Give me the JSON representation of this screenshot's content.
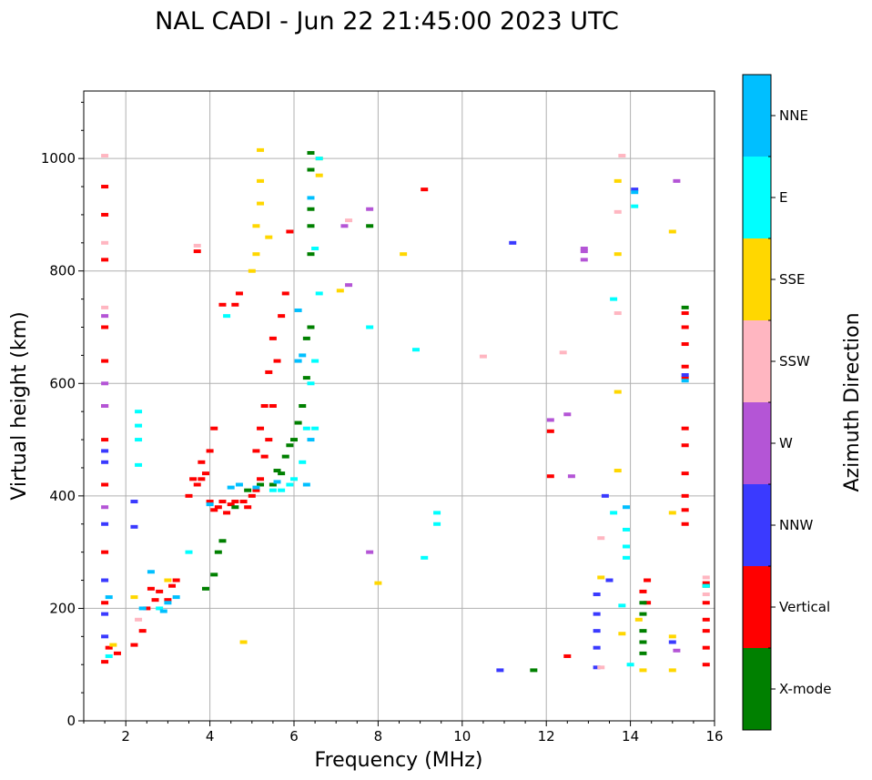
{
  "chart_data": {
    "type": "scatter",
    "title": "NAL CADI - Jun 22 21:45:00 2023 UTC",
    "xlabel": "Frequency (MHz)",
    "ylabel": "Virtual height (km)",
    "xlim": [
      1,
      16
    ],
    "ylim": [
      0,
      1120
    ],
    "xticks": [
      2,
      4,
      6,
      8,
      10,
      12,
      14,
      16
    ],
    "yticks": [
      0,
      200,
      400,
      600,
      800,
      1000
    ],
    "grid": true,
    "colorbar": {
      "label": "Azimuth Direction",
      "categories": [
        {
          "name": "X-mode",
          "color": "#008000"
        },
        {
          "name": "Vertical",
          "color": "#ff0000"
        },
        {
          "name": "NNW",
          "color": "#3a3aff"
        },
        {
          "name": "W",
          "color": "#b455d6"
        },
        {
          "name": "SSW",
          "color": "#ffb6c1"
        },
        {
          "name": "SSE",
          "color": "#ffd700"
        },
        {
          "name": "E",
          "color": "#00ffff"
        },
        {
          "name": "NNE",
          "color": "#00bfff"
        }
      ]
    },
    "series": [
      {
        "name": "Vertical",
        "points": [
          [
            1.5,
            105
          ],
          [
            1.5,
            210
          ],
          [
            1.5,
            300
          ],
          [
            1.5,
            420
          ],
          [
            1.5,
            500
          ],
          [
            1.5,
            560
          ],
          [
            1.5,
            640
          ],
          [
            1.5,
            700
          ],
          [
            1.5,
            820
          ],
          [
            1.5,
            900
          ],
          [
            1.5,
            950
          ],
          [
            1.6,
            130
          ],
          [
            1.8,
            120
          ],
          [
            2.2,
            135
          ],
          [
            2.4,
            160
          ],
          [
            2.5,
            200
          ],
          [
            2.6,
            235
          ],
          [
            2.7,
            215
          ],
          [
            2.8,
            230
          ],
          [
            3.0,
            215
          ],
          [
            3.1,
            240
          ],
          [
            3.2,
            250
          ],
          [
            3.5,
            400
          ],
          [
            3.6,
            430
          ],
          [
            3.7,
            420
          ],
          [
            3.7,
            835
          ],
          [
            3.8,
            430
          ],
          [
            3.8,
            460
          ],
          [
            3.9,
            440
          ],
          [
            4.0,
            390
          ],
          [
            4.0,
            480
          ],
          [
            4.1,
            375
          ],
          [
            4.1,
            520
          ],
          [
            4.2,
            380
          ],
          [
            4.3,
            390
          ],
          [
            4.3,
            740
          ],
          [
            4.4,
            370
          ],
          [
            4.5,
            385
          ],
          [
            4.6,
            390
          ],
          [
            4.6,
            740
          ],
          [
            4.7,
            760
          ],
          [
            4.8,
            390
          ],
          [
            4.9,
            380
          ],
          [
            5.0,
            400
          ],
          [
            5.1,
            410
          ],
          [
            5.1,
            480
          ],
          [
            5.2,
            430
          ],
          [
            5.2,
            520
          ],
          [
            5.3,
            470
          ],
          [
            5.3,
            560
          ],
          [
            5.4,
            500
          ],
          [
            5.4,
            620
          ],
          [
            5.5,
            560
          ],
          [
            5.5,
            680
          ],
          [
            5.6,
            640
          ],
          [
            5.7,
            720
          ],
          [
            5.8,
            760
          ],
          [
            5.9,
            870
          ],
          [
            9.1,
            945
          ],
          [
            12.1,
            515
          ],
          [
            12.1,
            435
          ],
          [
            12.5,
            115
          ],
          [
            14.3,
            230
          ],
          [
            14.4,
            210
          ],
          [
            14.4,
            250
          ],
          [
            15.3,
            350
          ],
          [
            15.3,
            375
          ],
          [
            15.3,
            400
          ],
          [
            15.3,
            440
          ],
          [
            15.3,
            490
          ],
          [
            15.3,
            520
          ],
          [
            15.3,
            610
          ],
          [
            15.3,
            630
          ],
          [
            15.3,
            670
          ],
          [
            15.3,
            700
          ],
          [
            15.3,
            725
          ],
          [
            15.8,
            100
          ],
          [
            15.8,
            130
          ],
          [
            15.8,
            160
          ],
          [
            15.8,
            180
          ],
          [
            15.8,
            210
          ],
          [
            15.8,
            245
          ]
        ]
      },
      {
        "name": "X-mode",
        "points": [
          [
            3.9,
            235
          ],
          [
            4.1,
            260
          ],
          [
            4.2,
            300
          ],
          [
            4.3,
            320
          ],
          [
            4.6,
            380
          ],
          [
            4.9,
            410
          ],
          [
            5.2,
            420
          ],
          [
            5.5,
            420
          ],
          [
            5.6,
            445
          ],
          [
            5.7,
            440
          ],
          [
            5.8,
            470
          ],
          [
            5.9,
            490
          ],
          [
            6.0,
            500
          ],
          [
            6.1,
            530
          ],
          [
            6.2,
            560
          ],
          [
            6.3,
            610
          ],
          [
            6.3,
            680
          ],
          [
            6.4,
            700
          ],
          [
            6.4,
            830
          ],
          [
            6.4,
            880
          ],
          [
            6.4,
            910
          ],
          [
            6.4,
            980
          ],
          [
            6.4,
            1010
          ],
          [
            7.8,
            880
          ],
          [
            11.7,
            90
          ],
          [
            14.3,
            120
          ],
          [
            14.3,
            140
          ],
          [
            14.3,
            160
          ],
          [
            14.3,
            190
          ],
          [
            14.3,
            210
          ],
          [
            15.8,
            240
          ],
          [
            15.3,
            735
          ]
        ]
      },
      {
        "name": "NNW",
        "points": [
          [
            1.5,
            150
          ],
          [
            1.5,
            190
          ],
          [
            1.5,
            250
          ],
          [
            1.5,
            350
          ],
          [
            1.5,
            460
          ],
          [
            1.5,
            480
          ],
          [
            2.2,
            345
          ],
          [
            2.2,
            390
          ],
          [
            10.9,
            90
          ],
          [
            11.2,
            850
          ],
          [
            13.2,
            95
          ],
          [
            13.2,
            130
          ],
          [
            13.2,
            160
          ],
          [
            13.2,
            190
          ],
          [
            13.2,
            225
          ],
          [
            13.5,
            250
          ],
          [
            13.4,
            400
          ],
          [
            14.1,
            945
          ],
          [
            15.0,
            140
          ],
          [
            15.3,
            615
          ]
        ]
      },
      {
        "name": "W",
        "points": [
          [
            1.5,
            380
          ],
          [
            1.5,
            560
          ],
          [
            1.5,
            600
          ],
          [
            1.5,
            720
          ],
          [
            7.8,
            300
          ],
          [
            7.8,
            910
          ],
          [
            7.2,
            880
          ],
          [
            7.3,
            775
          ],
          [
            12.1,
            535
          ],
          [
            12.5,
            545
          ],
          [
            12.6,
            435
          ],
          [
            12.9,
            820
          ],
          [
            12.9,
            835
          ],
          [
            12.9,
            840
          ],
          [
            15.1,
            125
          ],
          [
            15.1,
            960
          ]
        ]
      },
      {
        "name": "SSW",
        "points": [
          [
            1.5,
            735
          ],
          [
            1.5,
            850
          ],
          [
            1.5,
            1005
          ],
          [
            2.3,
            180
          ],
          [
            3.7,
            845
          ],
          [
            7.3,
            890
          ],
          [
            10.5,
            648
          ],
          [
            12.4,
            655
          ],
          [
            13.3,
            95
          ],
          [
            13.3,
            325
          ],
          [
            13.7,
            725
          ],
          [
            13.7,
            905
          ],
          [
            13.8,
            1005
          ],
          [
            15.8,
            225
          ],
          [
            15.8,
            255
          ]
        ]
      },
      {
        "name": "SSE",
        "points": [
          [
            1.7,
            135
          ],
          [
            2.2,
            220
          ],
          [
            3.0,
            250
          ],
          [
            4.8,
            140
          ],
          [
            5.0,
            800
          ],
          [
            5.1,
            830
          ],
          [
            5.1,
            880
          ],
          [
            5.2,
            920
          ],
          [
            5.2,
            960
          ],
          [
            5.2,
            1015
          ],
          [
            5.4,
            860
          ],
          [
            6.6,
            970
          ],
          [
            6.6,
            1000
          ],
          [
            7.1,
            765
          ],
          [
            8.0,
            245
          ],
          [
            8.6,
            830
          ],
          [
            13.3,
            255
          ],
          [
            13.7,
            445
          ],
          [
            13.7,
            585
          ],
          [
            13.7,
            830
          ],
          [
            13.7,
            960
          ],
          [
            13.8,
            155
          ],
          [
            14.2,
            180
          ],
          [
            14.3,
            90
          ],
          [
            15.0,
            90
          ],
          [
            15.0,
            150
          ],
          [
            15.0,
            370
          ],
          [
            15.0,
            870
          ]
        ]
      },
      {
        "name": "E",
        "points": [
          [
            1.6,
            115
          ],
          [
            2.3,
            455
          ],
          [
            2.3,
            500
          ],
          [
            2.3,
            525
          ],
          [
            2.3,
            550
          ],
          [
            2.8,
            200
          ],
          [
            3.5,
            300
          ],
          [
            4.4,
            720
          ],
          [
            5.5,
            410
          ],
          [
            5.7,
            410
          ],
          [
            5.9,
            420
          ],
          [
            6.0,
            430
          ],
          [
            6.2,
            460
          ],
          [
            6.3,
            520
          ],
          [
            6.4,
            600
          ],
          [
            6.5,
            520
          ],
          [
            6.5,
            640
          ],
          [
            6.6,
            760
          ],
          [
            6.6,
            1000
          ],
          [
            6.5,
            840
          ],
          [
            7.8,
            700
          ],
          [
            8.9,
            660
          ],
          [
            9.1,
            290
          ],
          [
            9.4,
            350
          ],
          [
            9.4,
            370
          ],
          [
            13.6,
            750
          ],
          [
            13.6,
            370
          ],
          [
            13.8,
            205
          ],
          [
            13.9,
            290
          ],
          [
            13.9,
            310
          ],
          [
            13.9,
            340
          ],
          [
            14.0,
            100
          ],
          [
            14.1,
            915
          ],
          [
            15.8,
            240
          ]
        ]
      },
      {
        "name": "NNE",
        "points": [
          [
            1.6,
            220
          ],
          [
            2.4,
            200
          ],
          [
            2.6,
            265
          ],
          [
            2.9,
            195
          ],
          [
            3.0,
            210
          ],
          [
            3.2,
            220
          ],
          [
            4.0,
            385
          ],
          [
            4.5,
            415
          ],
          [
            4.7,
            420
          ],
          [
            5.1,
            415
          ],
          [
            5.6,
            425
          ],
          [
            6.1,
            640
          ],
          [
            6.1,
            730
          ],
          [
            6.2,
            650
          ],
          [
            6.3,
            420
          ],
          [
            6.4,
            500
          ],
          [
            6.4,
            930
          ],
          [
            13.9,
            380
          ],
          [
            14.1,
            940
          ],
          [
            15.3,
            605
          ]
        ]
      }
    ]
  }
}
